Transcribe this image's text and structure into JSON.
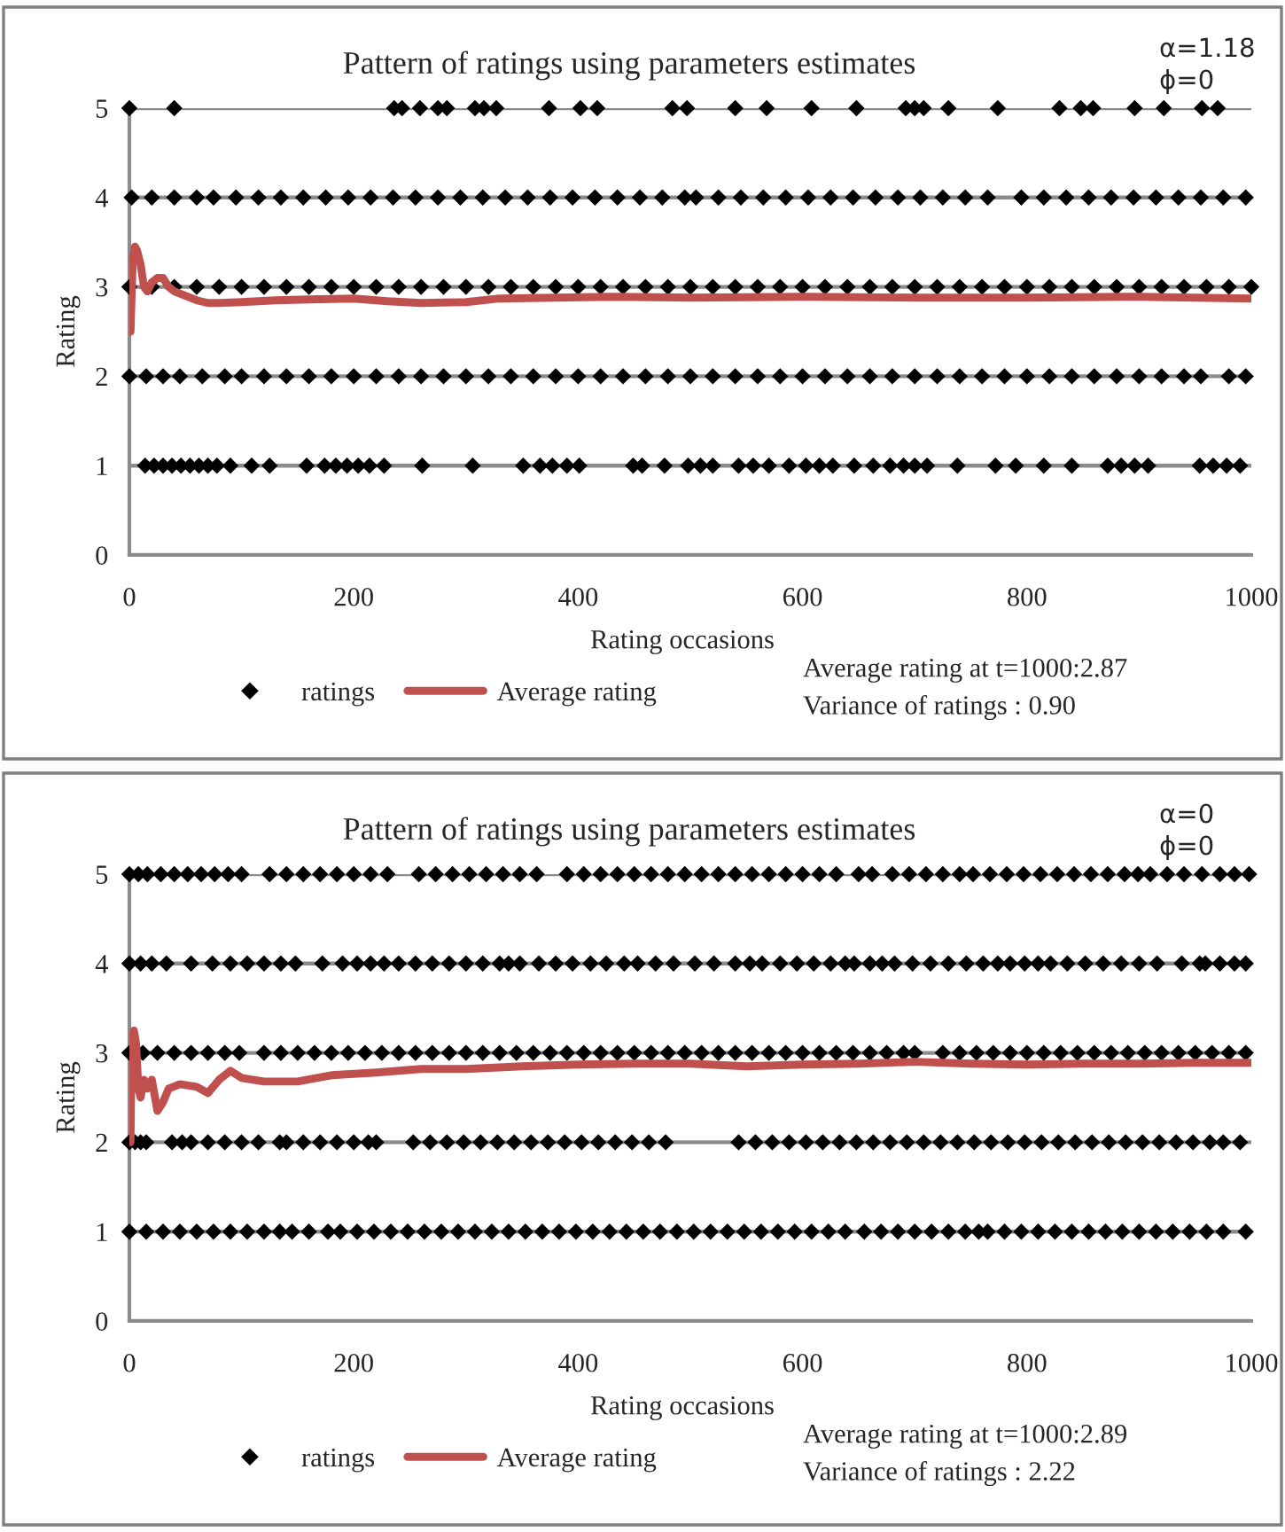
{
  "chart_data": [
    {
      "type": "scatter",
      "title": "Pattern of ratings using parameters estimates",
      "xlabel": "Rating occasions",
      "ylabel": "Rating",
      "annotations": [
        "α=1.18",
        "ϕ=0",
        "Average rating at t=1000:2.87",
        "Variance of ratings : 0.90"
      ],
      "xlim": [
        0,
        1000
      ],
      "ylim": [
        0,
        5
      ],
      "xticks": [
        0,
        200,
        400,
        600,
        800,
        1000
      ],
      "yticks": [
        0,
        1,
        2,
        3,
        4,
        5
      ],
      "grid": "y",
      "legend": "bottom",
      "marker": "diamond",
      "series": [
        {
          "name": "ratings",
          "color": "#000000",
          "x": [
            0,
            40,
            236,
            243,
            259,
            275,
            283,
            308,
            316,
            327,
            374,
            402,
            417,
            484,
            497,
            540,
            568,
            608,
            648,
            692,
            700,
            708,
            730,
            774,
            829,
            848,
            859,
            896,
            922,
            956,
            970,
            2,
            20,
            40,
            60,
            75,
            95,
            115,
            135,
            155,
            175,
            195,
            215,
            235,
            255,
            275,
            295,
            315,
            335,
            355,
            375,
            395,
            415,
            435,
            455,
            475,
            495,
            505,
            525,
            545,
            565,
            585,
            605,
            625,
            645,
            665,
            685,
            705,
            725,
            745,
            765,
            795,
            815,
            835,
            855,
            875,
            895,
            915,
            935,
            955,
            975,
            995,
            0,
            20,
            40,
            60,
            80,
            100,
            120,
            140,
            160,
            180,
            200,
            220,
            240,
            260,
            280,
            300,
            320,
            340,
            360,
            380,
            400,
            420,
            440,
            460,
            480,
            500,
            520,
            540,
            560,
            580,
            600,
            620,
            640,
            660,
            680,
            700,
            720,
            740,
            760,
            780,
            800,
            820,
            840,
            860,
            880,
            900,
            920,
            940,
            960,
            980,
            1000,
            0,
            15,
            30,
            45,
            65,
            85,
            100,
            120,
            140,
            160,
            180,
            200,
            220,
            240,
            260,
            280,
            300,
            320,
            340,
            360,
            380,
            400,
            420,
            440,
            460,
            480,
            500,
            520,
            540,
            560,
            580,
            600,
            620,
            640,
            660,
            680,
            700,
            720,
            740,
            760,
            780,
            800,
            820,
            840,
            860,
            880,
            900,
            920,
            940,
            955,
            980,
            995,
            14,
            22,
            30,
            38,
            46,
            54,
            62,
            70,
            78,
            90,
            109,
            125,
            158,
            174,
            184,
            194,
            204,
            214,
            227,
            261,
            306,
            351,
            366,
            377,
            390,
            401,
            449,
            457,
            477,
            498,
            509,
            520,
            543,
            556,
            570,
            588,
            603,
            615,
            627,
            646,
            663,
            678,
            690,
            700,
            711,
            738,
            772,
            790,
            815,
            840,
            872,
            884,
            896,
            908,
            954,
            966,
            978,
            990
          ],
          "values": [
            5,
            5,
            5,
            5,
            5,
            5,
            5,
            5,
            5,
            5,
            5,
            5,
            5,
            5,
            5,
            5,
            5,
            5,
            5,
            5,
            5,
            5,
            5,
            5,
            5,
            5,
            5,
            5,
            5,
            5,
            5,
            4,
            4,
            4,
            4,
            4,
            4,
            4,
            4,
            4,
            4,
            4,
            4,
            4,
            4,
            4,
            4,
            4,
            4,
            4,
            4,
            4,
            4,
            4,
            4,
            4,
            4,
            4,
            4,
            4,
            4,
            4,
            4,
            4,
            4,
            4,
            4,
            4,
            4,
            4,
            4,
            4,
            4,
            4,
            4,
            4,
            4,
            4,
            4,
            4,
            4,
            4,
            3,
            3,
            3,
            3,
            3,
            3,
            3,
            3,
            3,
            3,
            3,
            3,
            3,
            3,
            3,
            3,
            3,
            3,
            3,
            3,
            3,
            3,
            3,
            3,
            3,
            3,
            3,
            3,
            3,
            3,
            3,
            3,
            3,
            3,
            3,
            3,
            3,
            3,
            3,
            3,
            3,
            3,
            3,
            3,
            3,
            3,
            3,
            3,
            3,
            3,
            3,
            2,
            2,
            2,
            2,
            2,
            2,
            2,
            2,
            2,
            2,
            2,
            2,
            2,
            2,
            2,
            2,
            2,
            2,
            2,
            2,
            2,
            2,
            2,
            2,
            2,
            2,
            2,
            2,
            2,
            2,
            2,
            2,
            2,
            2,
            2,
            2,
            2,
            2,
            2,
            2,
            2,
            2,
            2,
            2,
            2,
            2,
            2,
            2,
            2,
            2,
            2,
            2,
            1,
            1,
            1,
            1,
            1,
            1,
            1,
            1,
            1,
            1,
            1,
            1,
            1,
            1,
            1,
            1,
            1,
            1,
            1,
            1,
            1,
            1,
            1,
            1,
            1,
            1,
            1,
            1,
            1,
            1,
            1,
            1,
            1,
            1,
            1,
            1,
            1,
            1,
            1,
            1,
            1,
            1,
            1,
            1,
            1,
            1,
            1,
            1,
            1,
            1,
            1,
            1,
            1,
            1,
            1,
            1,
            1,
            1
          ]
        },
        {
          "name": "Average rating",
          "type": "line",
          "color": "#c0504d",
          "marker": "none",
          "x": [
            1,
            3,
            5,
            7,
            10,
            13,
            16,
            20,
            25,
            30,
            35,
            40,
            50,
            60,
            70,
            80,
            100,
            130,
            160,
            200,
            230,
            260,
            300,
            330,
            380,
            430,
            500,
            600,
            700,
            800,
            900,
            1000
          ],
          "values": [
            2.5,
            3.3,
            3.45,
            3.4,
            3.25,
            3.0,
            2.95,
            3.05,
            3.1,
            3.1,
            3.0,
            2.95,
            2.9,
            2.85,
            2.82,
            2.82,
            2.83,
            2.85,
            2.86,
            2.87,
            2.84,
            2.82,
            2.83,
            2.87,
            2.88,
            2.89,
            2.88,
            2.89,
            2.88,
            2.88,
            2.89,
            2.87
          ]
        }
      ]
    },
    {
      "type": "scatter",
      "title": "Pattern of ratings using parameters estimates",
      "xlabel": "Rating occasions",
      "ylabel": "Rating",
      "annotations": [
        "α=0",
        "ϕ=0",
        "Average rating at t=1000:2.89",
        "Variance of ratings : 2.22"
      ],
      "xlim": [
        0,
        1000
      ],
      "ylim": [
        0,
        5
      ],
      "xticks": [
        0,
        200,
        400,
        600,
        800,
        1000
      ],
      "yticks": [
        0,
        1,
        2,
        3,
        4,
        5
      ],
      "grid": "y",
      "legend": "bottom",
      "marker": "diamond",
      "series": [
        {
          "name": "ratings",
          "color": "#000000",
          "x": [
            0,
            8,
            16,
            28,
            40,
            52,
            64,
            76,
            88,
            100,
            125,
            140,
            155,
            170,
            185,
            200,
            215,
            230,
            258,
            273,
            288,
            303,
            318,
            333,
            348,
            363,
            390,
            405,
            420,
            435,
            450,
            465,
            480,
            495,
            510,
            525,
            540,
            555,
            570,
            585,
            600,
            615,
            630,
            650,
            662,
            680,
            695,
            710,
            725,
            740,
            752,
            767,
            782,
            797,
            812,
            827,
            842,
            857,
            872,
            887,
            899,
            910,
            925,
            940,
            956,
            972,
            985,
            998,
            0,
            10,
            20,
            33,
            55,
            74,
            90,
            105,
            120,
            135,
            148,
            172,
            190,
            203,
            215,
            227,
            240,
            255,
            270,
            285,
            300,
            315,
            330,
            338,
            348,
            365,
            380,
            395,
            411,
            425,
            441,
            453,
            469,
            485,
            504,
            521,
            540,
            553,
            564,
            580,
            595,
            610,
            625,
            638,
            646,
            660,
            671,
            682,
            698,
            714,
            730,
            746,
            761,
            774,
            785,
            798,
            810,
            821,
            836,
            852,
            868,
            884,
            900,
            916,
            938,
            954,
            959,
            972,
            985,
            995,
            0,
            12,
            25,
            40,
            55,
            70,
            85,
            98,
            120,
            135,
            150,
            165,
            180,
            195,
            210,
            225,
            240,
            255,
            270,
            285,
            300,
            315,
            330,
            345,
            360,
            375,
            390,
            405,
            420,
            435,
            450,
            465,
            480,
            495,
            510,
            525,
            540,
            555,
            570,
            585,
            600,
            615,
            630,
            645,
            660,
            675,
            690,
            700,
            725,
            740,
            755,
            770,
            785,
            800,
            815,
            830,
            845,
            860,
            875,
            890,
            905,
            920,
            935,
            950,
            965,
            980,
            995,
            0,
            5,
            10,
            15,
            38,
            47,
            55,
            70,
            85,
            100,
            115,
            134,
            140,
            155,
            170,
            185,
            200,
            213,
            220,
            253,
            268,
            283,
            298,
            313,
            328,
            343,
            358,
            373,
            388,
            403,
            418,
            433,
            448,
            463,
            478,
            543,
            558,
            573,
            588,
            603,
            618,
            633,
            648,
            663,
            678,
            693,
            708,
            723,
            738,
            753,
            768,
            783,
            798,
            813,
            828,
            843,
            858,
            873,
            888,
            903,
            918,
            933,
            948,
            963,
            975,
            990,
            0,
            15,
            30,
            45,
            60,
            75,
            90,
            105,
            120,
            134,
            145,
            160,
            177,
            188,
            203,
            218,
            233,
            248,
            263,
            278,
            293,
            308,
            323,
            338,
            353,
            368,
            383,
            398,
            413,
            428,
            443,
            458,
            473,
            488,
            503,
            518,
            533,
            548,
            563,
            578,
            593,
            608,
            623,
            638,
            655,
            670,
            685,
            700,
            715,
            730,
            745,
            757,
            765,
            780,
            795,
            810,
            825,
            840,
            855,
            870,
            885,
            900,
            915,
            930,
            945,
            960,
            975,
            995
          ],
          "values": [
            5,
            5,
            5,
            5,
            5,
            5,
            5,
            5,
            5,
            5,
            5,
            5,
            5,
            5,
            5,
            5,
            5,
            5,
            5,
            5,
            5,
            5,
            5,
            5,
            5,
            5,
            5,
            5,
            5,
            5,
            5,
            5,
            5,
            5,
            5,
            5,
            5,
            5,
            5,
            5,
            5,
            5,
            5,
            5,
            5,
            5,
            5,
            5,
            5,
            5,
            5,
            5,
            5,
            5,
            5,
            5,
            5,
            5,
            5,
            5,
            5,
            5,
            5,
            5,
            5,
            5,
            5,
            5,
            4,
            4,
            4,
            4,
            4,
            4,
            4,
            4,
            4,
            4,
            4,
            4,
            4,
            4,
            4,
            4,
            4,
            4,
            4,
            4,
            4,
            4,
            4,
            4,
            4,
            4,
            4,
            4,
            4,
            4,
            4,
            4,
            4,
            4,
            4,
            4,
            4,
            4,
            4,
            4,
            4,
            4,
            4,
            4,
            4,
            4,
            4,
            4,
            4,
            4,
            4,
            4,
            4,
            4,
            4,
            4,
            4,
            4,
            4,
            4,
            4,
            4,
            4,
            4,
            4,
            4,
            4,
            4,
            4,
            4,
            3,
            3,
            3,
            3,
            3,
            3,
            3,
            3,
            3,
            3,
            3,
            3,
            3,
            3,
            3,
            3,
            3,
            3,
            3,
            3,
            3,
            3,
            3,
            3,
            3,
            3,
            3,
            3,
            3,
            3,
            3,
            3,
            3,
            3,
            3,
            3,
            3,
            3,
            3,
            3,
            3,
            3,
            3,
            3,
            3,
            3,
            3,
            3,
            3,
            3,
            3,
            3,
            3,
            3,
            3,
            3,
            3,
            3,
            3,
            3,
            3,
            3,
            3,
            3,
            3,
            3,
            3,
            2,
            2,
            2,
            2,
            2,
            2,
            2,
            2,
            2,
            2,
            2,
            2,
            2,
            2,
            2,
            2,
            2,
            2,
            2,
            2,
            2,
            2,
            2,
            2,
            2,
            2,
            2,
            2,
            2,
            2,
            2,
            2,
            2,
            2,
            2,
            2,
            2,
            2,
            2,
            2,
            2,
            2,
            2,
            2,
            2,
            2,
            2,
            2,
            2,
            2,
            2,
            2,
            2,
            2,
            2,
            2,
            2,
            2,
            2,
            2,
            2,
            2,
            2,
            2,
            2,
            2,
            1,
            1,
            1,
            1,
            1,
            1,
            1,
            1,
            1,
            1,
            1,
            1,
            1,
            1,
            1,
            1,
            1,
            1,
            1,
            1,
            1,
            1,
            1,
            1,
            1,
            1,
            1,
            1,
            1,
            1,
            1,
            1,
            1,
            1,
            1,
            1,
            1,
            1,
            1,
            1,
            1,
            1,
            1,
            1,
            1,
            1,
            1,
            1,
            1,
            1,
            1,
            1,
            1,
            1,
            1,
            1,
            1,
            1,
            1,
            1,
            1,
            1,
            1,
            1,
            1,
            1,
            1,
            1
          ]
        },
        {
          "name": "Average rating",
          "type": "line",
          "color": "#c0504d",
          "marker": "none",
          "x": [
            1,
            2,
            4,
            6,
            8,
            10,
            13,
            16,
            20,
            25,
            30,
            35,
            45,
            60,
            70,
            80,
            90,
            100,
            120,
            150,
            180,
            220,
            260,
            300,
            350,
            400,
            450,
            500,
            550,
            600,
            650,
            700,
            750,
            800,
            850,
            900,
            950,
            1000
          ],
          "values": [
            2.0,
            3.0,
            3.25,
            3.1,
            2.6,
            2.5,
            2.7,
            2.6,
            2.7,
            2.35,
            2.45,
            2.6,
            2.65,
            2.62,
            2.55,
            2.7,
            2.8,
            2.72,
            2.68,
            2.68,
            2.75,
            2.78,
            2.82,
            2.82,
            2.85,
            2.87,
            2.88,
            2.88,
            2.85,
            2.87,
            2.88,
            2.9,
            2.88,
            2.87,
            2.88,
            2.88,
            2.89,
            2.89
          ]
        }
      ]
    }
  ]
}
